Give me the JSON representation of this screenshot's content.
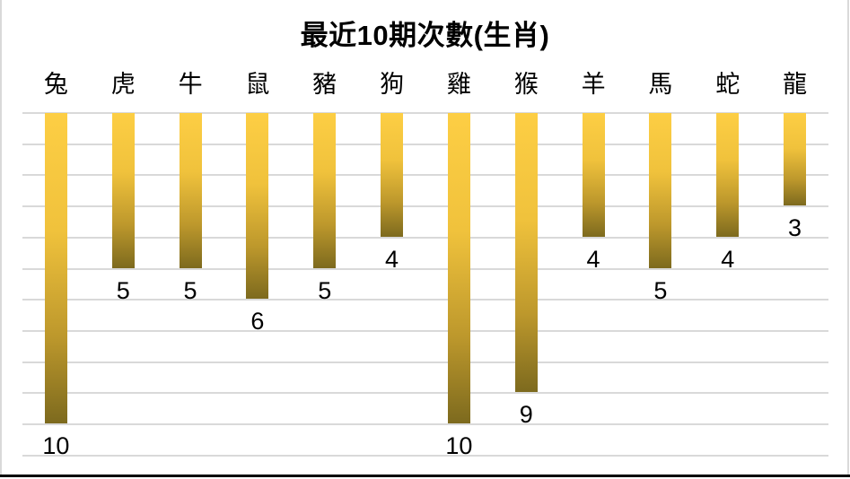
{
  "chart_data": {
    "type": "bar",
    "title": "最近10期次數(生肖)",
    "categories": [
      "兔",
      "虎",
      "牛",
      "鼠",
      "豬",
      "狗",
      "雞",
      "猴",
      "羊",
      "馬",
      "蛇",
      "龍"
    ],
    "values": [
      10,
      5,
      5,
      6,
      5,
      4,
      10,
      9,
      4,
      5,
      4,
      3
    ],
    "xlabel": "",
    "ylabel": "",
    "value_axis": {
      "min": 0,
      "max": 11,
      "gridline_step": 1,
      "direction": "downward",
      "tick_labels_visible": false
    },
    "layout_hints": {
      "legend": "none",
      "grid_on": true,
      "bars_hang_from_top_axis": true,
      "data_label_position": "below-bar-end",
      "category_labels_position": "above-plot"
    },
    "colors": {
      "background": "#ffffff",
      "text": "#000000",
      "gridline": "#d9d9d9",
      "frame_border": "#d9d9d9",
      "bottom_rule": "#000000",
      "bar_gradient": [
        "#fdce44",
        "#f0c23c",
        "#bd982c",
        "#7d6a1e"
      ]
    }
  }
}
